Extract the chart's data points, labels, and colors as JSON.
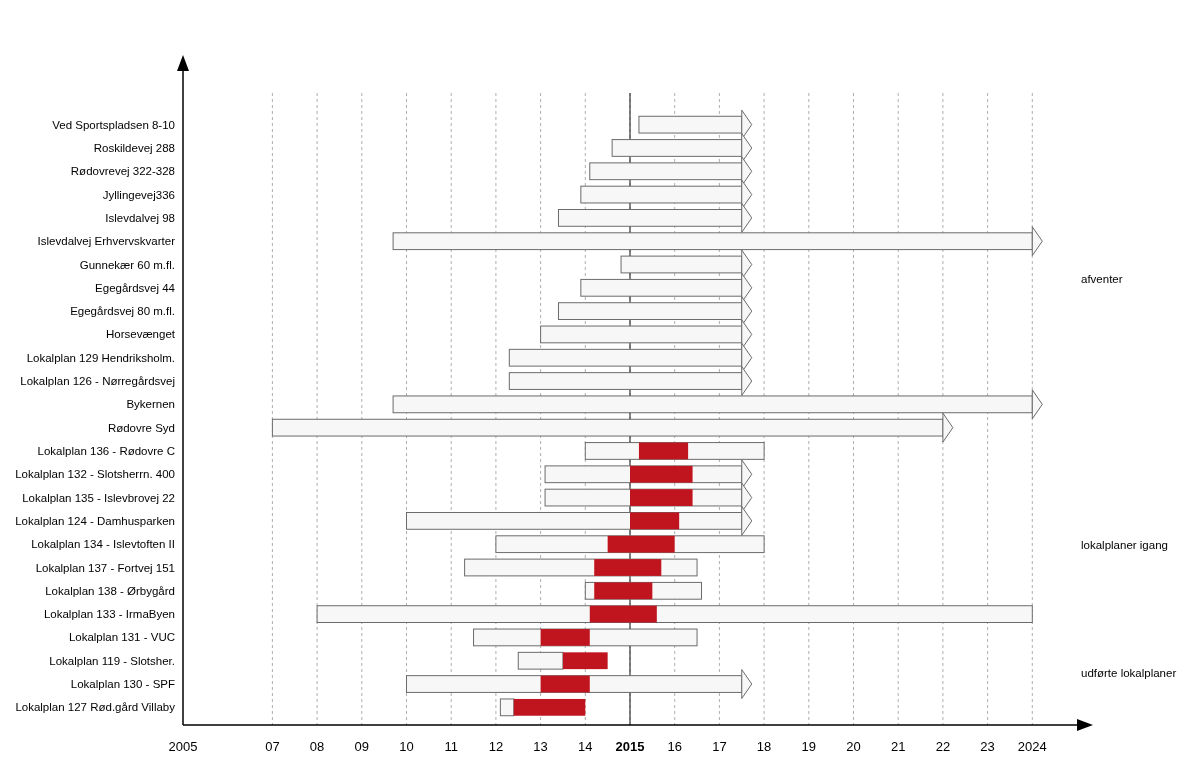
{
  "chart_data": {
    "type": "bar",
    "orientation": "horizontal",
    "categories": [
      "Ved Sportspladsen 8-10",
      "Roskildevej 288",
      "Rødovrevej 322-328",
      "Jyllingevej336",
      "Islevdalvej 98",
      "Islevdalvej Erhvervskvarter",
      "Gunnekær 60 m.fl.",
      "Egegårdsvej 44",
      "Egegårdsvej 80 m.fl.",
      "Horsevænget",
      "Lokalplan 129 Hendriksholm.",
      "Lokalplan 126 - Nørregårdsvej",
      "Bykernen",
      "Rødovre Syd",
      "Lokalplan 136 - Rødovre C",
      "Lokalplan 132 - Slotsherrn. 400",
      "Lokalplan 135 - Islevbrovej 22",
      "Lokalplan 124 - Damhusparken",
      "Lokalplan 134 - Islevtoften II",
      "Lokalplan 137 - Fortvej 151",
      "Lokalplan 138 - Ørbygård",
      "Lokalplan 133 - IrmaByen",
      "Lokalplan 131 - VUC",
      "Lokalplan 119 - Slotsher.",
      "Lokalplan 130 - SPF",
      "Lokalplan 127 Rød.gård Villaby"
    ],
    "series": [
      {
        "color": "#f7f7f7",
        "marker": "triangle",
        "base": [
          2015.2,
          2014.6,
          2014.1,
          2013.9,
          2013.4,
          2009.7,
          2014.8,
          2013.9,
          2013.4,
          2013.0,
          2012.3,
          2012.3,
          2009.7,
          2007.0,
          null,
          2013.1,
          2013.1,
          2010.0,
          null,
          null,
          null,
          null,
          null,
          null,
          2010.0,
          null
        ],
        "values": [
          2.3,
          2.9,
          3.4,
          3.6,
          4.1,
          14.3,
          2.7,
          3.6,
          4.1,
          4.5,
          5.2,
          5.2,
          14.3,
          15.0,
          null,
          4.4,
          4.4,
          7.5,
          null,
          null,
          null,
          null,
          null,
          null,
          7.5,
          null
        ]
      },
      {
        "color": "#f7f7f7",
        "marker": "none",
        "base": [
          null,
          null,
          null,
          null,
          null,
          null,
          null,
          null,
          null,
          null,
          null,
          null,
          null,
          null,
          2014.0,
          null,
          null,
          null,
          2012.0,
          2011.3,
          2014.0,
          2008.0,
          2011.5,
          2012.5,
          null,
          2012.1
        ],
        "values": [
          null,
          null,
          null,
          null,
          null,
          null,
          null,
          null,
          null,
          null,
          null,
          null,
          null,
          null,
          4.0,
          null,
          null,
          null,
          6.0,
          5.2,
          2.6,
          16.0,
          5.0,
          1.0,
          null,
          0.3
        ]
      },
      {
        "color": "#c0141e",
        "marker": "none",
        "base": [
          null,
          null,
          null,
          null,
          null,
          null,
          null,
          null,
          null,
          null,
          null,
          null,
          null,
          null,
          2015.2,
          2015.0,
          2015.0,
          2015.0,
          2014.5,
          2014.2,
          2014.2,
          2014.1,
          2013.0,
          2013.5,
          2013.0,
          2012.4
        ],
        "values": [
          null,
          null,
          null,
          null,
          null,
          null,
          null,
          null,
          null,
          null,
          null,
          null,
          null,
          null,
          1.1,
          1.4,
          1.4,
          1.1,
          1.5,
          1.5,
          1.3,
          1.5,
          1.1,
          1.0,
          1.1,
          1.6
        ]
      }
    ],
    "xlim": [
      2005,
      2025
    ],
    "xticks": [
      2005,
      {
        "value": 2007,
        "label": "07"
      },
      {
        "value": 2008,
        "label": "08"
      },
      {
        "value": 2009,
        "label": "09"
      },
      {
        "value": 2010,
        "label": "10"
      },
      {
        "value": 2011,
        "label": "11"
      },
      {
        "value": 2012,
        "label": "12"
      },
      {
        "value": 2013,
        "label": "13"
      },
      {
        "value": 2014,
        "label": "14"
      },
      2015,
      {
        "value": 2016,
        "label": "16"
      },
      {
        "value": 2017,
        "label": "17"
      },
      {
        "value": 2018,
        "label": "18"
      },
      {
        "value": 2019,
        "label": "19"
      },
      {
        "value": 2020,
        "label": "20"
      },
      {
        "value": 2021,
        "label": "21"
      },
      {
        "value": 2022,
        "label": "22"
      },
      {
        "value": 2023,
        "label": "23"
      },
      2024
    ],
    "grid": "x",
    "ref_lines": [
      {
        "axis": "x",
        "value": 2015,
        "color": "#333333",
        "line_style": "solid"
      }
    ],
    "annotations": [
      "afventer",
      "lokalplaner igang",
      "udførte lokalplaner"
    ]
  }
}
